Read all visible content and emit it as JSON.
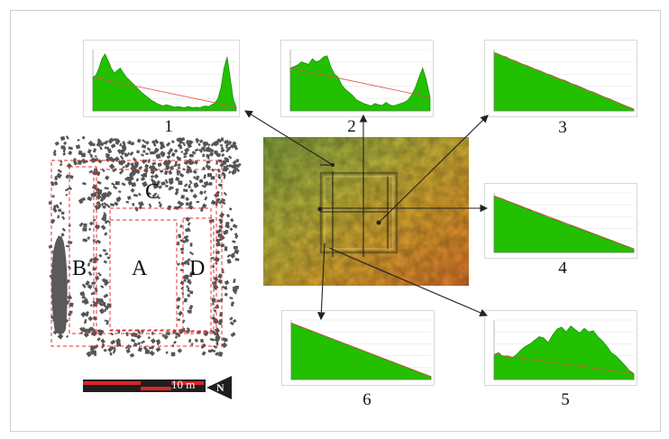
{
  "profiles": [
    {
      "id": 1,
      "label": "1",
      "values": [
        0.55,
        0.58,
        0.7,
        0.85,
        0.93,
        0.82,
        0.7,
        0.62,
        0.66,
        0.7,
        0.62,
        0.55,
        0.5,
        0.45,
        0.4,
        0.35,
        0.3,
        0.26,
        0.22,
        0.18,
        0.15,
        0.12,
        0.1,
        0.08,
        0.1,
        0.09,
        0.07,
        0.06,
        0.07,
        0.06,
        0.05,
        0.07,
        0.06,
        0.05,
        0.06,
        0.05,
        0.07,
        0.08,
        0.07,
        0.1,
        0.13,
        0.2,
        0.38,
        0.7,
        0.88,
        0.55,
        0.2,
        0.06
      ]
    },
    {
      "id": 2,
      "label": "2",
      "values": [
        0.7,
        0.72,
        0.75,
        0.8,
        0.78,
        0.76,
        0.85,
        0.8,
        0.82,
        0.88,
        0.9,
        0.72,
        0.6,
        0.55,
        0.42,
        0.35,
        0.3,
        0.25,
        0.18,
        0.15,
        0.12,
        0.1,
        0.08,
        0.12,
        0.1,
        0.09,
        0.14,
        0.1,
        0.08,
        0.1,
        0.12,
        0.14,
        0.18,
        0.26,
        0.38,
        0.55,
        0.7,
        0.5,
        0.22
      ]
    },
    {
      "id": 3,
      "label": "3",
      "values": [
        0.95,
        0.93,
        0.9,
        0.88,
        0.84,
        0.82,
        0.79,
        0.76,
        0.74,
        0.71,
        0.68,
        0.66,
        0.63,
        0.6,
        0.58,
        0.55,
        0.52,
        0.5,
        0.47,
        0.44,
        0.42,
        0.39,
        0.36,
        0.33,
        0.31,
        0.28,
        0.25,
        0.22,
        0.2,
        0.17,
        0.14,
        0.11,
        0.08,
        0.05,
        0.03
      ]
    },
    {
      "id": 4,
      "label": "4",
      "values": [
        0.95,
        0.92,
        0.9,
        0.86,
        0.84,
        0.8,
        0.78,
        0.74,
        0.72,
        0.68,
        0.66,
        0.63,
        0.6,
        0.57,
        0.55,
        0.52,
        0.49,
        0.46,
        0.44,
        0.41,
        0.38,
        0.36,
        0.33,
        0.3,
        0.28,
        0.25,
        0.22,
        0.2,
        0.17,
        0.14,
        0.11,
        0.08,
        0.06
      ]
    },
    {
      "id": 5,
      "label": "5",
      "values": [
        0.42,
        0.45,
        0.38,
        0.4,
        0.36,
        0.42,
        0.5,
        0.56,
        0.6,
        0.66,
        0.72,
        0.7,
        0.62,
        0.75,
        0.85,
        0.88,
        0.8,
        0.9,
        0.84,
        0.78,
        0.86,
        0.8,
        0.82,
        0.72,
        0.65,
        0.56,
        0.45,
        0.4,
        0.32,
        0.24,
        0.15,
        0.1
      ]
    },
    {
      "id": 6,
      "label": "6",
      "values": [
        0.95,
        0.92,
        0.88,
        0.86,
        0.82,
        0.8,
        0.76,
        0.74,
        0.7,
        0.68,
        0.64,
        0.62,
        0.58,
        0.56,
        0.52,
        0.5,
        0.46,
        0.44,
        0.4,
        0.38,
        0.34,
        0.32,
        0.28,
        0.26,
        0.22,
        0.2,
        0.16,
        0.14,
        0.1,
        0.08,
        0.05
      ]
    }
  ],
  "plan": {
    "zones": [
      "A",
      "B",
      "C",
      "D"
    ]
  },
  "scale": {
    "label": "10 m",
    "north": "N"
  },
  "colors": {
    "profile_fill": "#22c000",
    "profile_edge": "#128a00",
    "trend_line": "#e24a4a",
    "plan_dash": "#e03030",
    "stones": "#555555",
    "arrow": "#222222"
  }
}
